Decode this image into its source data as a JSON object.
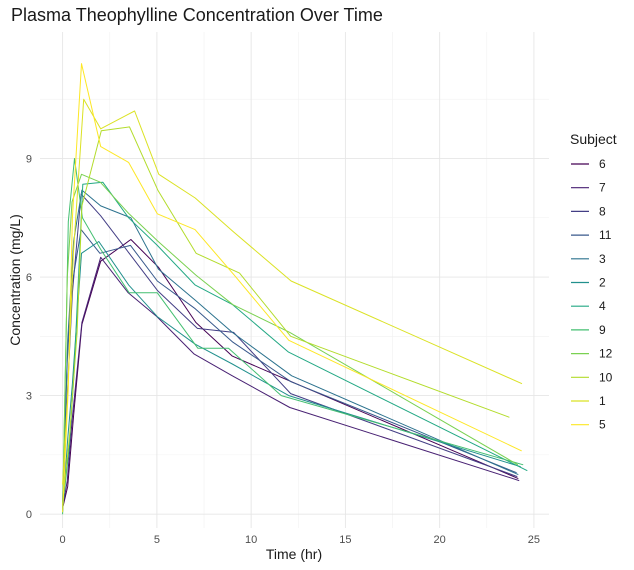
{
  "chart_data": {
    "type": "line",
    "title": "Plasma Theophylline Concentration Over Time",
    "xlabel": "Time (hr)",
    "ylabel": "Concentration (mg/L)",
    "xlim": [
      -1.2,
      25.8
    ],
    "ylim": [
      -0.35,
      12.2
    ],
    "xticks": [
      0,
      5,
      10,
      15,
      20,
      25
    ],
    "yticks": [
      0,
      3,
      6,
      9
    ],
    "grid": true,
    "legend_title": "Subject",
    "legend_position": "right",
    "series": [
      {
        "name": "6",
        "color": "#440154",
        "x": [
          0,
          0.27,
          0.58,
          1.02,
          2.02,
          3.62,
          5.08,
          7.07,
          9.0,
          12.15,
          24.17
        ],
        "y": [
          0.15,
          0.7,
          2.5,
          4.8,
          6.4,
          6.95,
          6.25,
          4.85,
          4.0,
          3.35,
          0.9
        ]
      },
      {
        "name": "7",
        "color": "#482173",
        "x": [
          0,
          0.25,
          0.5,
          1.02,
          2.02,
          3.48,
          5.0,
          6.98,
          9.0,
          12.05,
          24.22
        ],
        "y": [
          0.15,
          0.85,
          2.35,
          4.85,
          6.5,
          5.6,
          5.0,
          4.05,
          3.5,
          2.7,
          0.85
        ]
      },
      {
        "name": "8",
        "color": "#433e85",
        "x": [
          0,
          0.25,
          0.52,
          0.98,
          2.02,
          3.53,
          5.05,
          7.15,
          9.07,
          12.1,
          24.12
        ],
        "y": [
          0.1,
          3.0,
          5.6,
          8.1,
          7.55,
          6.6,
          5.65,
          4.7,
          4.6,
          3.05,
          0.95
        ]
      },
      {
        "name": "11",
        "color": "#38598c",
        "x": [
          0,
          0.25,
          0.5,
          0.98,
          1.98,
          3.6,
          5.02,
          7.03,
          9.03,
          12.12,
          24.08
        ],
        "y": [
          0.3,
          3.9,
          5.8,
          7.2,
          6.6,
          6.8,
          5.9,
          5.2,
          4.35,
          3.35,
          1.05
        ]
      },
      {
        "name": "3",
        "color": "#2c728e",
        "x": [
          0,
          0.27,
          0.58,
          1.02,
          2.02,
          3.62,
          5.08,
          7.07,
          9.0,
          12.15,
          24.17
        ],
        "y": [
          0.15,
          4.4,
          6.9,
          8.2,
          7.8,
          7.5,
          6.2,
          5.4,
          4.6,
          3.5,
          1.0
        ]
      },
      {
        "name": "2",
        "color": "#21908d",
        "x": [
          0,
          0.27,
          0.52,
          1.0,
          1.92,
          3.5,
          5.02,
          7.03,
          9.0,
          12.0,
          24.3
        ],
        "y": [
          0.05,
          1.9,
          3.3,
          6.6,
          6.9,
          5.8,
          5.0,
          4.3,
          3.8,
          3.0,
          1.2
        ]
      },
      {
        "name": "4",
        "color": "#23a884",
        "x": [
          0,
          0.35,
          0.6,
          1.07,
          2.13,
          3.5,
          5.02,
          7.02,
          9.02,
          11.98,
          24.65
        ],
        "y": [
          0.15,
          1.7,
          3.5,
          8.35,
          8.4,
          7.5,
          6.8,
          5.8,
          5.3,
          4.1,
          1.1
        ]
      },
      {
        "name": "9",
        "color": "#43bf71",
        "x": [
          0,
          0.3,
          0.63,
          1.05,
          2.02,
          3.53,
          5.02,
          7.17,
          8.8,
          11.6,
          24.43
        ],
        "y": [
          0,
          7.4,
          9.0,
          7.5,
          6.7,
          5.6,
          5.6,
          4.2,
          4.2,
          3.0,
          1.25
        ]
      },
      {
        "name": "12",
        "color": "#7ad151",
        "x": [
          0,
          0.25,
          0.5,
          1.0,
          2.0,
          3.52,
          5.07,
          7.07,
          9.03,
          12.05,
          24.15
        ],
        "y": [
          0.2,
          6.0,
          7.9,
          8.6,
          8.4,
          7.6,
          6.9,
          6.05,
          5.3,
          4.6,
          1.25
        ]
      },
      {
        "name": "10",
        "color": "#b3dc2b",
        "x": [
          0,
          0.37,
          0.77,
          1.02,
          2.05,
          3.55,
          5.05,
          7.08,
          9.38,
          12.1,
          23.7
        ],
        "y": [
          0.25,
          2.0,
          4.6,
          7.8,
          9.7,
          9.8,
          8.2,
          6.6,
          6.1,
          4.5,
          2.45
        ]
      },
      {
        "name": "1",
        "color": "#dbe224",
        "x": [
          0,
          0.25,
          0.57,
          1.12,
          2.02,
          3.82,
          5.1,
          7.03,
          9.05,
          12.12,
          24.37
        ],
        "y": [
          0.75,
          2.85,
          6.6,
          10.5,
          9.75,
          10.2,
          8.6,
          8.0,
          7.15,
          5.9,
          3.3
        ]
      },
      {
        "name": "5",
        "color": "#fde725",
        "x": [
          0,
          0.3,
          0.52,
          1.0,
          2.02,
          3.5,
          5.02,
          7.02,
          9.1,
          12.0,
          24.35
        ],
        "y": [
          0.05,
          3.2,
          7.5,
          11.4,
          9.3,
          8.9,
          7.6,
          7.2,
          6.05,
          4.4,
          1.6
        ]
      }
    ]
  }
}
